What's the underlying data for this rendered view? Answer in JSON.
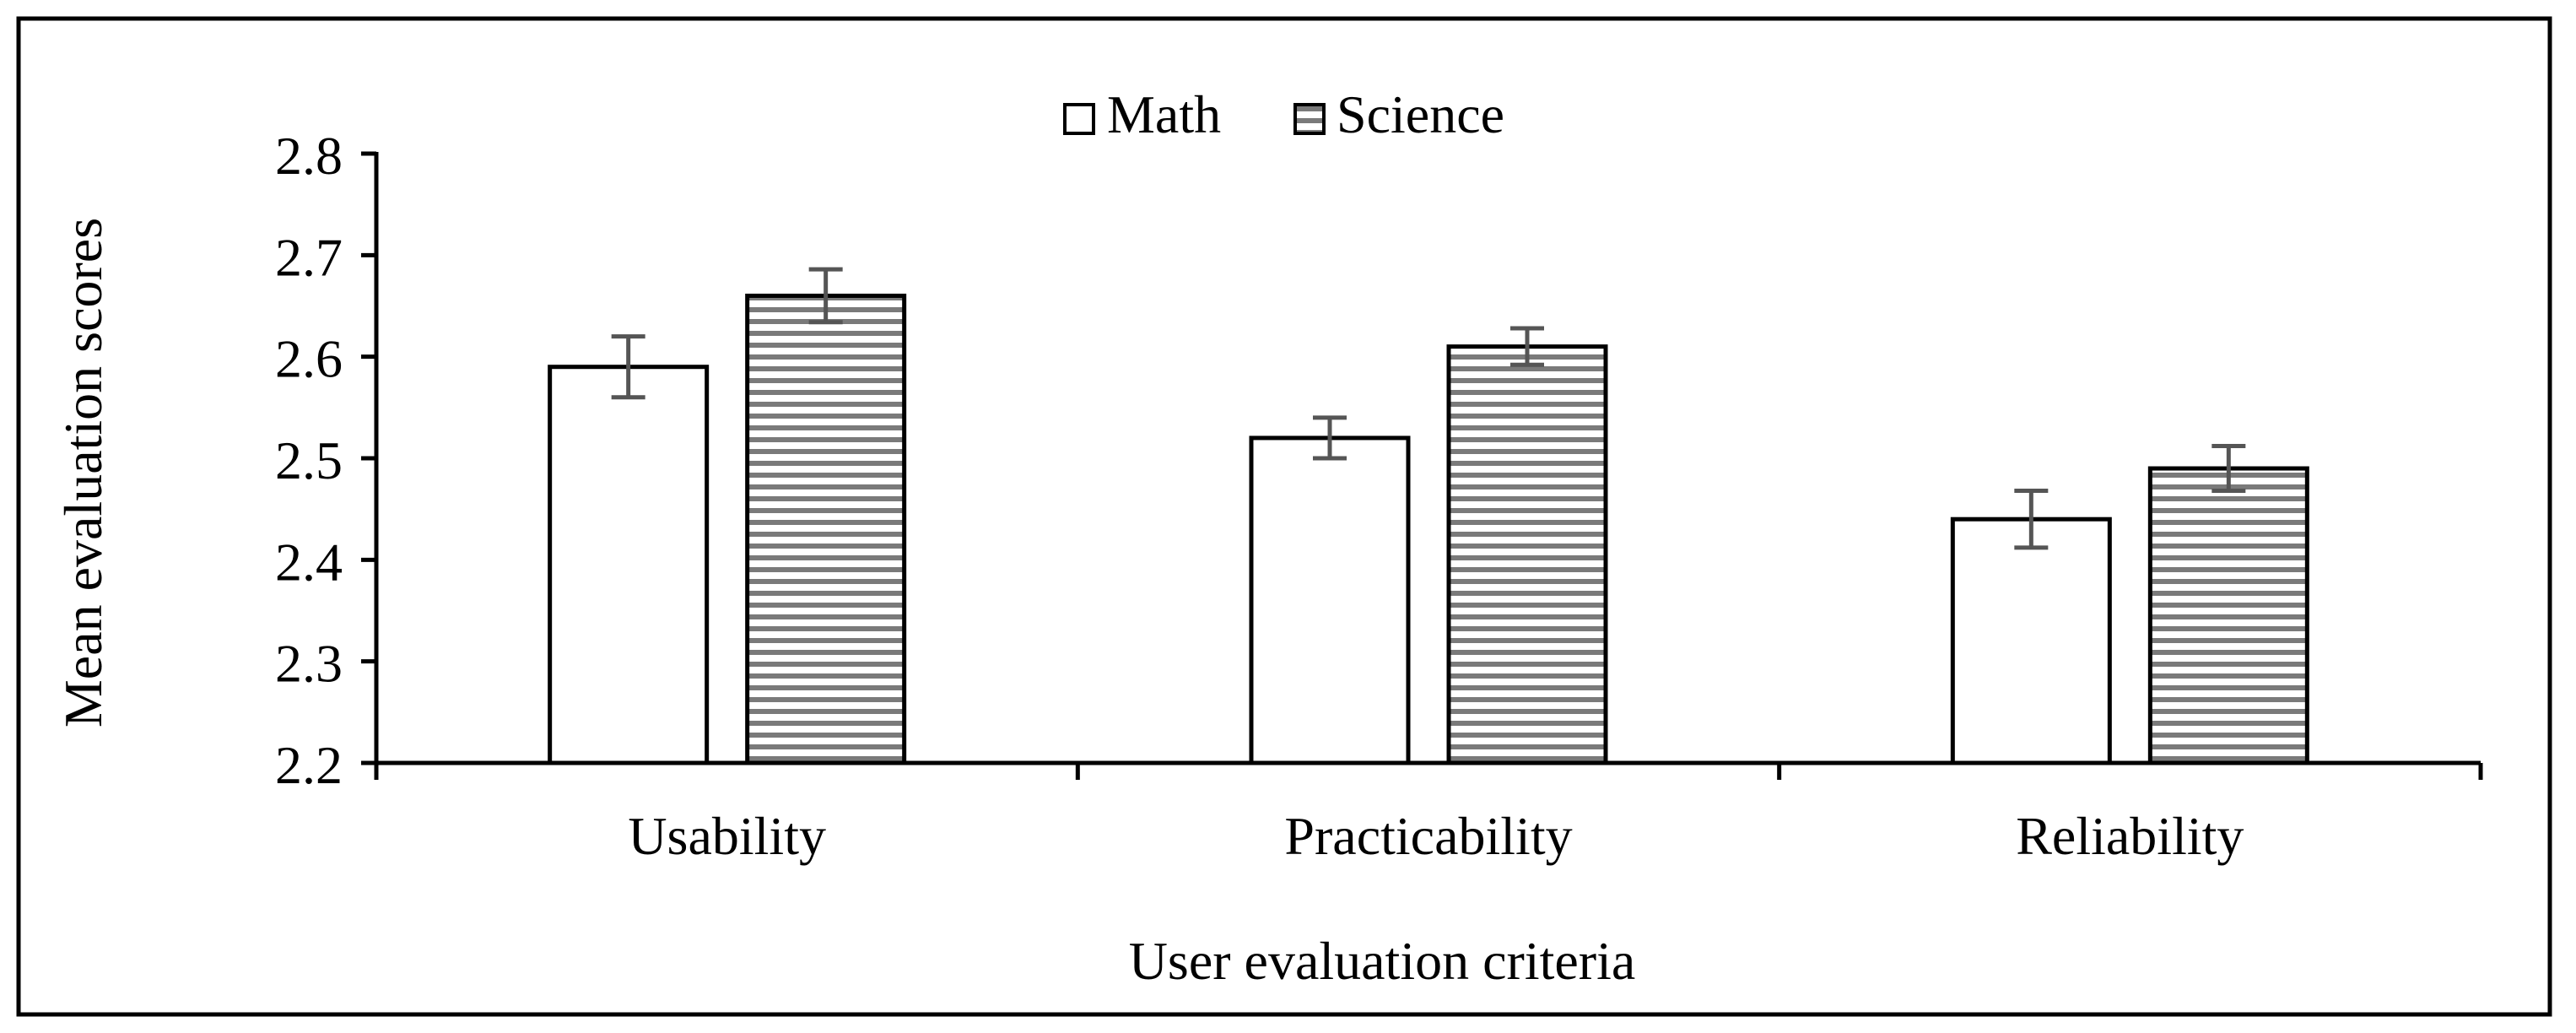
{
  "chart_data": {
    "type": "bar",
    "title": "",
    "xlabel": "User evaluation criteria",
    "ylabel": "Mean evaluation scores",
    "categories": [
      "Usability",
      "Practicability",
      "Reliability"
    ],
    "ylim": [
      2.2,
      2.8
    ],
    "yticks": [
      2.2,
      2.3,
      2.4,
      2.5,
      2.6,
      2.7,
      2.8
    ],
    "ytick_labels": [
      "2.2",
      "2.3",
      "2.4",
      "2.5",
      "2.6",
      "2.7",
      "2.8"
    ],
    "grid": false,
    "legend_position": "top-center",
    "series": [
      {
        "name": "Math",
        "pattern": "white",
        "values": [
          2.59,
          2.52,
          2.44
        ],
        "errors": [
          0.03,
          0.02,
          0.028
        ]
      },
      {
        "name": "Science",
        "pattern": "horizontal-stripes",
        "values": [
          2.66,
          2.61,
          2.49
        ],
        "errors": [
          0.026,
          0.018,
          0.022
        ]
      }
    ]
  },
  "colors": {
    "bar_outline": "#000000",
    "bar_fill": "#ffffff",
    "stripe": "#7a7a7a",
    "error_bar": "#555555",
    "axis": "#000000"
  }
}
